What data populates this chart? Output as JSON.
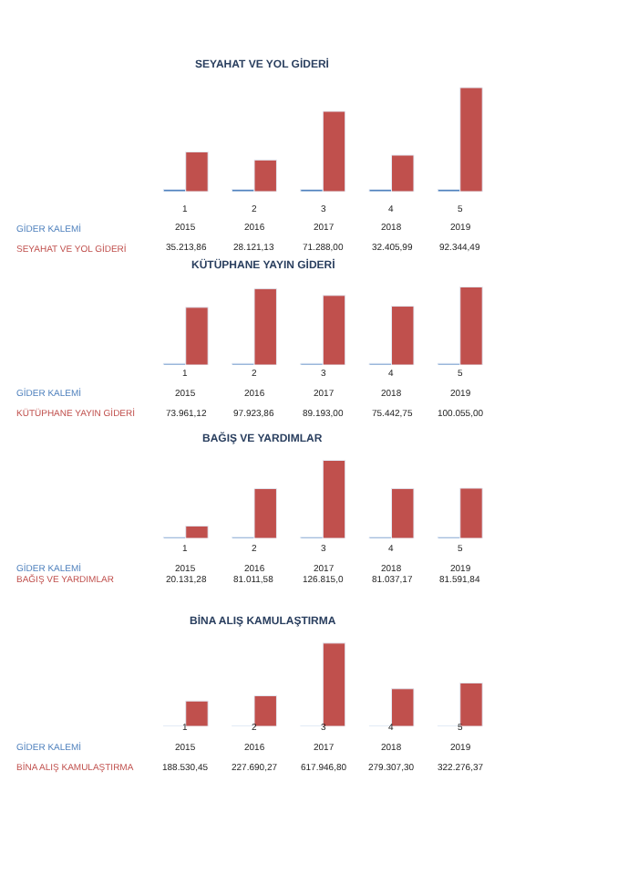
{
  "chart_data": [
    {
      "type": "bar",
      "title": "SEYAHAT VE YOL GİDERİ",
      "categories": [
        "1",
        "2",
        "3",
        "4",
        "5"
      ],
      "series": [
        {
          "name": "GİDER KALEMİ",
          "color": "#4f81bd",
          "values": [
            2015,
            2016,
            2017,
            2018,
            2019
          ],
          "value_labels": [
            "2015",
            "2016",
            "2017",
            "2018",
            "2019"
          ]
        },
        {
          "name": "SEYAHAT VE YOL GİDERİ",
          "color": "#c0504d",
          "values": [
            35213.86,
            28121.13,
            71288.0,
            32405.99,
            92344.49
          ],
          "value_labels": [
            "35.213,86",
            "28.121,13",
            "71.288,00",
            "32.405,99",
            "92.344,49"
          ]
        }
      ]
    },
    {
      "type": "bar",
      "title": "KÜTÜPHANE YAYIN GİDERİ",
      "categories": [
        "1",
        "2",
        "3",
        "4",
        "5"
      ],
      "series": [
        {
          "name": "GİDER KALEMİ",
          "color": "#4f81bd",
          "values": [
            2015,
            2016,
            2017,
            2018,
            2019
          ],
          "value_labels": [
            "2015",
            "2016",
            "2017",
            "2018",
            "2019"
          ]
        },
        {
          "name": "KÜTÜPHANE YAYIN GİDERİ",
          "color": "#c0504d",
          "values": [
            73961.12,
            97923.86,
            89193.0,
            75442.75,
            100055.0
          ],
          "value_labels": [
            "73.961,12",
            "97.923,86",
            "89.193,00",
            "75.442,75",
            "100.055,00"
          ]
        }
      ]
    },
    {
      "type": "bar",
      "title": "BAĞIŞ VE YARDIMLAR",
      "categories": [
        "1",
        "2",
        "3",
        "4",
        "5"
      ],
      "series": [
        {
          "name": "GİDER KALEMİ",
          "color": "#4f81bd",
          "values": [
            2015,
            2016,
            2017,
            2018,
            2019
          ],
          "value_labels": [
            "2015",
            "2016",
            "2017",
            "2018",
            "2019"
          ]
        },
        {
          "name": "BAĞIŞ VE YARDIMLAR",
          "color": "#c0504d",
          "values": [
            20131.28,
            81011.58,
            126815.0,
            81037.17,
            81591.84
          ],
          "value_labels": [
            "20.131,28",
            "81.011,58",
            "126.815,0",
            "81.037,17",
            "81.591,84"
          ]
        }
      ]
    },
    {
      "type": "bar",
      "title": "BİNA ALIŞ KAMULAŞTIRMA",
      "categories": [
        "1",
        "2",
        "3",
        "4",
        "5"
      ],
      "series": [
        {
          "name": "GİDER KALEMİ",
          "color": "#4f81bd",
          "values": [
            2015,
            2016,
            2017,
            2018,
            2019
          ],
          "value_labels": [
            "2015",
            "2016",
            "2017",
            "2018",
            "2019"
          ]
        },
        {
          "name": "BİNA ALIŞ KAMULAŞTIRMA",
          "color": "#c0504d",
          "values": [
            188530.45,
            227690.27,
            617946.8,
            279307.3,
            322276.37
          ],
          "value_labels": [
            "188.530,45",
            "227.690,27",
            "617.946,80",
            "279.307,30",
            "322.276,37"
          ]
        }
      ]
    }
  ]
}
